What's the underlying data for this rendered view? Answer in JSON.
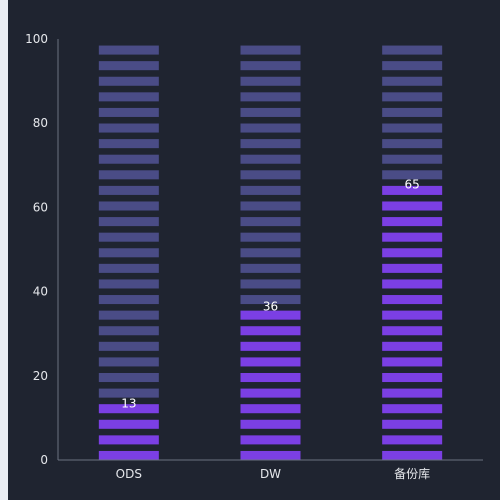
{
  "chart_data": {
    "type": "bar",
    "categories": [
      "ODS",
      "DW",
      "备份库"
    ],
    "values": [
      13,
      36,
      65
    ],
    "ylim": [
      0,
      100
    ],
    "yticks": [
      0,
      20,
      40,
      60,
      80,
      100
    ],
    "grid": false,
    "colors": {
      "background": "#1f2430",
      "filled": "#7b3fe4",
      "empty": "#4a4c86",
      "axis": "#6b7280",
      "text": "#e5e7eb"
    }
  }
}
